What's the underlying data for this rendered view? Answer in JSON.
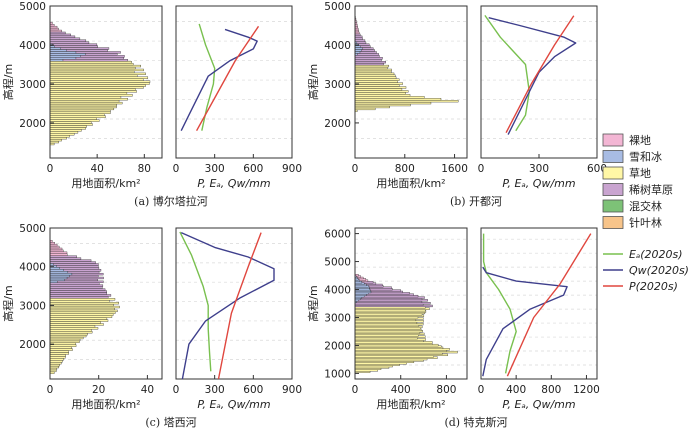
{
  "colors": {
    "bare": "#f3b6d4",
    "snow": "#a8bce4",
    "grass": "#fff7a6",
    "shrub": "#c9a4d0",
    "mixed": "#7dc277",
    "conifer": "#f7c48a",
    "et": "#79c04f",
    "qw": "#3e3f8c",
    "p": "#e0473f",
    "bar_edge": "#222222"
  },
  "legend": {
    "land": [
      {
        "label": "裸地",
        "key": "bare"
      },
      {
        "label": "雪和冰",
        "key": "snow"
      },
      {
        "label": "草地",
        "key": "grass"
      },
      {
        "label": "稀树草原",
        "key": "shrub"
      },
      {
        "label": "混交林",
        "key": "mixed"
      },
      {
        "label": "针叶林",
        "key": "conifer"
      }
    ],
    "lines": [
      {
        "label": "Eₐ(2020s)",
        "key": "et"
      },
      {
        "label": "Qw(2020s)",
        "key": "qw"
      },
      {
        "label": "P(2020s)",
        "key": "p"
      }
    ]
  },
  "chart_data": [
    {
      "id": "a",
      "type": "bar",
      "subtitle": "(a) 博尔塔拉河",
      "ylabel": "高程/m",
      "ylim": [
        1100,
        5000
      ],
      "yticks": [
        2000,
        3000,
        4000,
        5000
      ],
      "bar_panel": {
        "xlabel": "用地面积/km²",
        "xlim": [
          0,
          95
        ],
        "xticks": [
          0,
          40,
          80
        ],
        "elevation": [
          1450,
          4550
        ],
        "profile": [
          [
            1450,
            4,
            "grass"
          ],
          [
            1800,
            28,
            "grass"
          ],
          [
            2200,
            50,
            "grass"
          ],
          [
            2500,
            62,
            "grass"
          ],
          [
            2800,
            74,
            "grass"
          ],
          [
            3000,
            88,
            "grass"
          ],
          [
            3200,
            82,
            "grass"
          ],
          [
            3450,
            78,
            "grass"
          ],
          [
            3600,
            68,
            "shrub"
          ],
          [
            3800,
            60,
            "shrub"
          ],
          [
            4000,
            40,
            "shrub"
          ],
          [
            4200,
            22,
            "shrub"
          ],
          [
            4350,
            10,
            "bare"
          ],
          [
            4550,
            2,
            "bare"
          ]
        ],
        "snow_profile": [
          [
            3550,
            0
          ],
          [
            3650,
            22
          ],
          [
            3750,
            30
          ],
          [
            3850,
            14
          ],
          [
            3950,
            4
          ],
          [
            4050,
            0
          ]
        ]
      },
      "line_panel": {
        "xlabel": "P, Eₐ, Qw/mm",
        "xlim": [
          0,
          900
        ],
        "xticks": [
          0,
          300,
          600,
          900
        ],
        "series": [
          {
            "key": "et",
            "points": [
              [
                180,
                4540
              ],
              [
                230,
                4000
              ],
              [
                300,
                3400
              ],
              [
                290,
                3000
              ],
              [
                240,
                2400
              ],
              [
                200,
                1800
              ]
            ]
          },
          {
            "key": "qw",
            "points": [
              [
                380,
                4400
              ],
              [
                560,
                4200
              ],
              [
                630,
                4100
              ],
              [
                600,
                3900
              ],
              [
                420,
                3600
              ],
              [
                250,
                3200
              ],
              [
                100,
                2200
              ],
              [
                40,
                1800
              ]
            ]
          },
          {
            "key": "p",
            "points": [
              [
                640,
                4480
              ],
              [
                460,
                3600
              ],
              [
                310,
                2700
              ],
              [
                160,
                1800
              ]
            ]
          }
        ]
      }
    },
    {
      "id": "b",
      "type": "bar",
      "subtitle": "(b) 开都河",
      "ylabel": "高程/m",
      "ylim": [
        1100,
        5000
      ],
      "yticks": [
        2000,
        3000,
        4000,
        5000
      ],
      "bar_panel": {
        "xlabel": "用地面积/km²",
        "xlim": [
          0,
          1800
        ],
        "xticks": [
          0,
          800,
          1600
        ],
        "elevation": [
          2300,
          4700
        ],
        "profile": [
          [
            2300,
            40,
            "grass"
          ],
          [
            2450,
            900,
            "grass"
          ],
          [
            2550,
            1700,
            "grass"
          ],
          [
            2700,
            900,
            "grass"
          ],
          [
            2900,
            820,
            "grass"
          ],
          [
            3100,
            720,
            "grass"
          ],
          [
            3300,
            620,
            "grass"
          ],
          [
            3500,
            520,
            "shrub"
          ],
          [
            3700,
            420,
            "shrub"
          ],
          [
            3900,
            300,
            "shrub"
          ],
          [
            4100,
            160,
            "shrub"
          ],
          [
            4300,
            70,
            "bare"
          ],
          [
            4700,
            8,
            "bare"
          ]
        ],
        "snow_profile": [
          [
            3700,
            0
          ],
          [
            3800,
            80
          ],
          [
            3900,
            120
          ],
          [
            4000,
            60
          ],
          [
            4100,
            0
          ]
        ]
      },
      "line_panel": {
        "xlabel": "P, Eₐ, Qw/mm",
        "xlim": [
          0,
          600
        ],
        "xticks": [
          0,
          300,
          600
        ],
        "series": [
          {
            "key": "et",
            "points": [
              [
                20,
                4760
              ],
              [
                100,
                4200
              ],
              [
                230,
                3500
              ],
              [
                250,
                2800
              ],
              [
                230,
                2200
              ],
              [
                180,
                1800
              ]
            ]
          },
          {
            "key": "qw",
            "points": [
              [
                40,
                4700
              ],
              [
                200,
                4500
              ],
              [
                430,
                4200
              ],
              [
                490,
                4050
              ],
              [
                380,
                3700
              ],
              [
                300,
                3300
              ],
              [
                230,
                2600
              ],
              [
                140,
                1700
              ]
            ]
          },
          {
            "key": "p",
            "points": [
              [
                480,
                4750
              ],
              [
                380,
                4000
              ],
              [
                260,
                3000
              ],
              [
                130,
                1750
              ]
            ]
          }
        ]
      }
    },
    {
      "id": "c",
      "type": "bar",
      "subtitle": "(c) 塔西河",
      "ylabel": "高程/m",
      "ylim": [
        1100,
        5000
      ],
      "yticks": [
        2000,
        3000,
        4000,
        5000
      ],
      "bar_panel": {
        "xlabel": "用地面积/km²",
        "xlim": [
          0,
          46
        ],
        "xticks": [
          0,
          20,
          40
        ],
        "elevation": [
          1250,
          4650
        ],
        "profile": [
          [
            1250,
            2,
            "grass"
          ],
          [
            1700,
            7,
            "grass"
          ],
          [
            2100,
            13,
            "grass"
          ],
          [
            2500,
            22,
            "grass"
          ],
          [
            2800,
            28,
            "grass"
          ],
          [
            3000,
            29,
            "grass"
          ],
          [
            3200,
            26,
            "shrub"
          ],
          [
            3500,
            22,
            "shrub"
          ],
          [
            3800,
            22,
            "shrub"
          ],
          [
            4100,
            20,
            "shrub"
          ],
          [
            4300,
            8,
            "bare"
          ],
          [
            4650,
            1,
            "bare"
          ]
        ],
        "snow_profile": [
          [
            3550,
            0
          ],
          [
            3650,
            6
          ],
          [
            3800,
            9
          ],
          [
            3950,
            4
          ],
          [
            4100,
            0
          ]
        ]
      },
      "line_panel": {
        "xlabel": "P, Eₐ, Qw/mm",
        "xlim": [
          0,
          900
        ],
        "xticks": [
          0,
          300,
          600,
          900
        ],
        "series": [
          {
            "key": "et",
            "points": [
              [
                30,
                4900
              ],
              [
                120,
                4300
              ],
              [
                210,
                3500
              ],
              [
                250,
                3000
              ],
              [
                250,
                2400
              ],
              [
                260,
                1800
              ],
              [
                270,
                1300
              ]
            ]
          },
          {
            "key": "qw",
            "points": [
              [
                40,
                4880
              ],
              [
                300,
                4500
              ],
              [
                560,
                4250
              ],
              [
                760,
                3950
              ],
              [
                760,
                3650
              ],
              [
                500,
                3200
              ],
              [
                230,
                2600
              ],
              [
                100,
                2000
              ],
              [
                50,
                1100
              ]
            ]
          },
          {
            "key": "p",
            "points": [
              [
                660,
                4880
              ],
              [
                560,
                4000
              ],
              [
                430,
                2800
              ],
              [
                330,
                1100
              ]
            ]
          }
        ]
      }
    },
    {
      "id": "d",
      "type": "bar",
      "subtitle": "(d) 特克斯河",
      "ylabel": "高程/m",
      "ylim": [
        800,
        6200
      ],
      "yticks": [
        1000,
        2000,
        3000,
        4000,
        5000,
        6000
      ],
      "bar_panel": {
        "xlabel": "用地面积/km²",
        "xlim": [
          0,
          980
        ],
        "xticks": [
          0,
          400,
          800
        ],
        "elevation": [
          1050,
          4500
        ],
        "profile": [
          [
            1050,
            150,
            "grass"
          ],
          [
            1300,
            400,
            "grass"
          ],
          [
            1500,
            680,
            "grass"
          ],
          [
            1750,
            900,
            "grass"
          ],
          [
            1950,
            780,
            "grass"
          ],
          [
            2200,
            620,
            "grass"
          ],
          [
            2600,
            600,
            "grass"
          ],
          [
            3000,
            600,
            "grass"
          ],
          [
            3400,
            680,
            "shrub"
          ],
          [
            3700,
            620,
            "shrub"
          ],
          [
            4000,
            360,
            "shrub"
          ],
          [
            4300,
            120,
            "bare"
          ],
          [
            4500,
            30,
            "bare"
          ]
        ],
        "snow_profile": [
          [
            3500,
            0
          ],
          [
            3700,
            60
          ],
          [
            3900,
            140
          ],
          [
            4100,
            120
          ],
          [
            4300,
            40
          ],
          [
            4500,
            0
          ]
        ]
      },
      "line_panel": {
        "xlabel": "P, Eₐ, Qw/mm",
        "xlim": [
          0,
          1320
        ],
        "xticks": [
          0,
          400,
          800,
          1200
        ],
        "series": [
          {
            "key": "et",
            "points": [
              [
                30,
                6000
              ],
              [
                30,
                5000
              ],
              [
                60,
                4600
              ],
              [
                200,
                4000
              ],
              [
                330,
                3300
              ],
              [
                400,
                2500
              ],
              [
                330,
                1800
              ],
              [
                280,
                1000
              ]
            ]
          },
          {
            "key": "qw",
            "points": [
              [
                20,
                4800
              ],
              [
                60,
                4600
              ],
              [
                400,
                4300
              ],
              [
                980,
                4100
              ],
              [
                940,
                3800
              ],
              [
                560,
                3300
              ],
              [
                250,
                2600
              ],
              [
                60,
                1500
              ],
              [
                20,
                900
              ]
            ]
          },
          {
            "key": "p",
            "points": [
              [
                1250,
                6000
              ],
              [
                900,
                4200
              ],
              [
                600,
                3000
              ],
              [
                300,
                900
              ]
            ]
          }
        ]
      }
    }
  ]
}
